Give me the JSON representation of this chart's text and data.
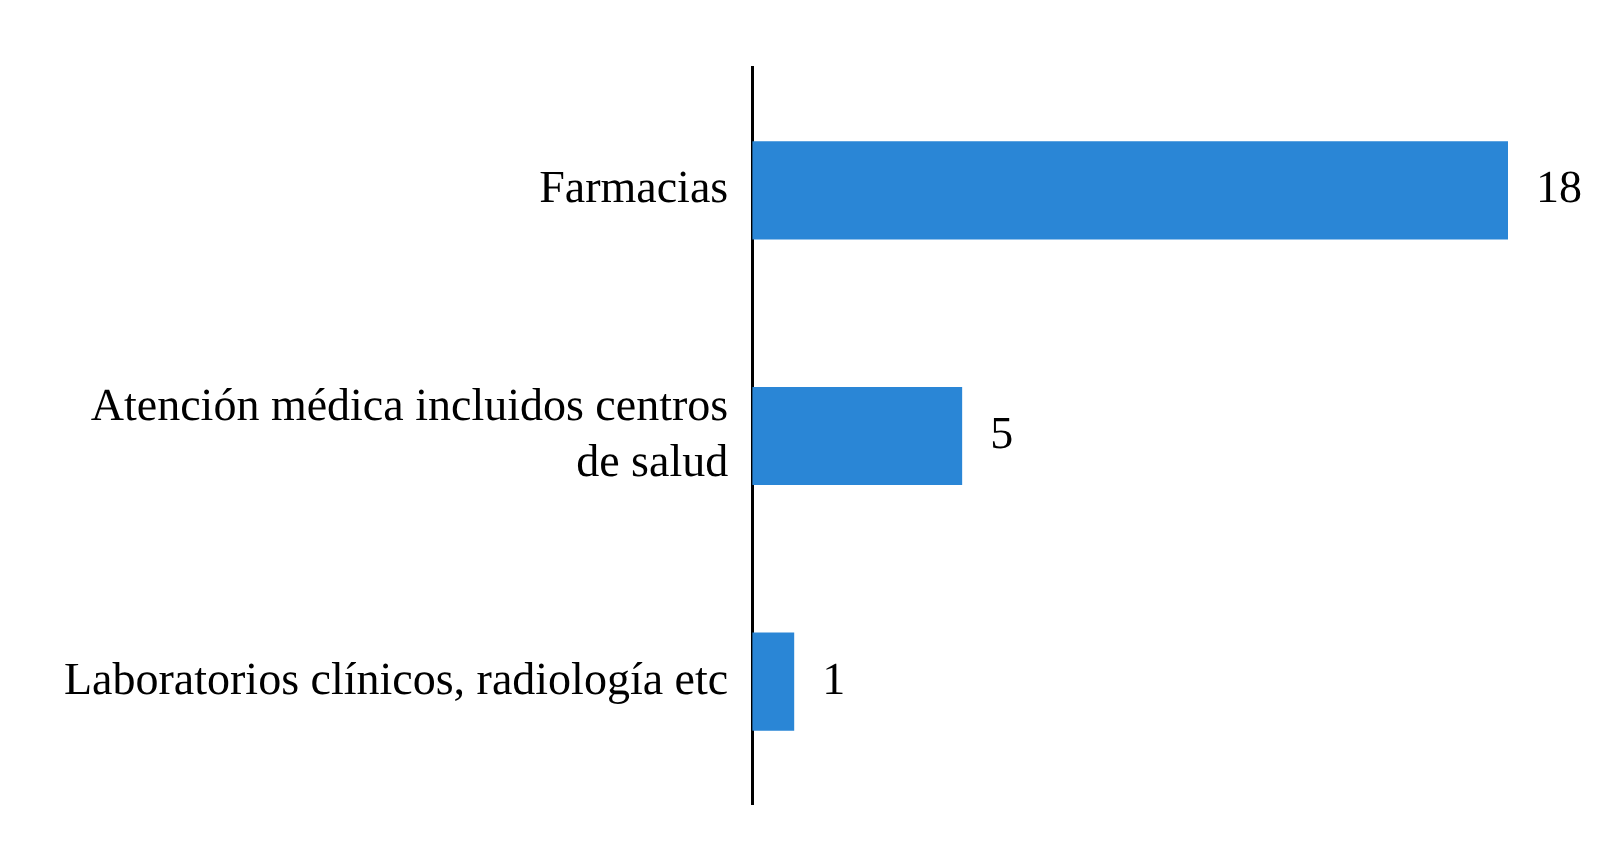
{
  "chart_data": {
    "type": "bar",
    "orientation": "horizontal",
    "categories": [
      "Farmacias",
      "Atención médica incluidos centros de salud",
      "Laboratorios clínicos, radiología etc"
    ],
    "values": [
      18,
      5,
      1
    ],
    "color": "#2a86d6",
    "data_labels": true
  }
}
